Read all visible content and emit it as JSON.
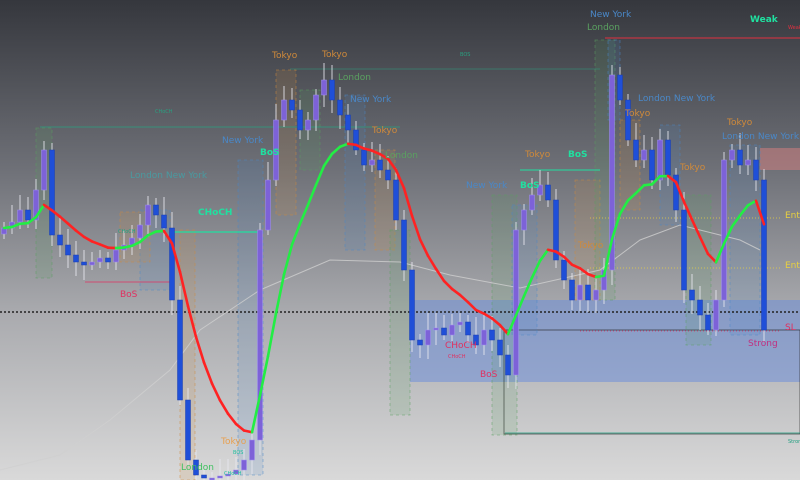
{
  "chart_data": {
    "type": "candlestick",
    "title": "",
    "xlabel": "",
    "ylabel": "",
    "grid": false,
    "colors": {
      "up": "#7d62d8",
      "down": "#1f4fd8",
      "ma_up": "#22ee44",
      "ma_down": "#ff2222",
      "slow_ma": "#d0d0d0",
      "demand_zone": "#6f8fd8",
      "supply_zone": "#d88080"
    },
    "closes": [
      252,
      258,
      270,
      260,
      290,
      330,
      245,
      235,
      225,
      218,
      215,
      218,
      222,
      218,
      230,
      235,
      242,
      255,
      275,
      265,
      252,
      180,
      80,
      20,
      5,
      2,
      2,
      4,
      6,
      10,
      20,
      40,
      250,
      300,
      360,
      380,
      370,
      350,
      360,
      385,
      400,
      380,
      365,
      350,
      330,
      315,
      320,
      310,
      300,
      260,
      210,
      140,
      135,
      150,
      152,
      145,
      155,
      158,
      145,
      135,
      150,
      140,
      125,
      105,
      250,
      270,
      285,
      295,
      280,
      220,
      200,
      180,
      195,
      180,
      190,
      210,
      405,
      380,
      340,
      320,
      330,
      300,
      340,
      305,
      270,
      190,
      180,
      165,
      150,
      180,
      320,
      330,
      315,
      320,
      300,
      150
    ],
    "annotations": [
      {
        "text": "Tokyo",
        "color": "#d08a3a"
      },
      {
        "text": "Tokyo",
        "color": "#d08a3a"
      },
      {
        "text": "London",
        "color": "#5aa060"
      },
      {
        "text": "New York",
        "color": "#4a88c8"
      },
      {
        "text": "Tokyo",
        "color": "#d08a3a"
      },
      {
        "text": "London",
        "color": "#5aa060"
      },
      {
        "text": "BOS",
        "color": "#2aa080"
      },
      {
        "text": "CHoCH",
        "color": "#2aa080"
      },
      {
        "text": "London New York",
        "color": "#4a9aa0"
      },
      {
        "text": "CHoCH",
        "color": "#20e0a0"
      },
      {
        "text": "BoS",
        "color": "#e03060"
      },
      {
        "text": "BoS",
        "color": "#20e0a0"
      },
      {
        "text": "New York",
        "color": "#4a88c8"
      },
      {
        "text": "New York",
        "color": "#4a88c8"
      },
      {
        "text": "London",
        "color": "#5aa060"
      },
      {
        "text": "Weak",
        "color": "#20e0a0"
      },
      {
        "text": "Tokyo",
        "color": "#d08a3a"
      },
      {
        "text": "London New York",
        "color": "#4a88c8"
      },
      {
        "text": "Tokyo",
        "color": "#d08a3a"
      },
      {
        "text": "BoS",
        "color": "#20e0a0"
      },
      {
        "text": "BoS",
        "color": "#20e0a0"
      },
      {
        "text": "New York",
        "color": "#4a88c8"
      },
      {
        "text": "Tokyo",
        "color": "#d08a3a"
      },
      {
        "text": "Tokyo",
        "color": "#d08a3a"
      },
      {
        "text": "Tokyo",
        "color": "#d08a3a"
      },
      {
        "text": "London New York",
        "color": "#4a88c8"
      },
      {
        "text": "Entry",
        "color": "#e8d040"
      },
      {
        "text": "Entry",
        "color": "#e8d040"
      },
      {
        "text": "SL",
        "color": "#e03060"
      },
      {
        "text": "Strong",
        "color": "#c03080"
      },
      {
        "text": "CHoCH",
        "color": "#e03060"
      },
      {
        "text": "BoS",
        "color": "#e03060"
      },
      {
        "text": "CHoCH",
        "color": "#e03060"
      },
      {
        "text": "Tokyo",
        "color": "#e8a050"
      },
      {
        "text": "London",
        "color": "#40c060"
      },
      {
        "text": "CHoCH",
        "color": "#20c0a0"
      },
      {
        "text": "BOS",
        "color": "#20c0a0"
      },
      {
        "text": "CHoCH",
        "color": "#20a080"
      },
      {
        "text": "Weak",
        "color": "#e03040"
      },
      {
        "text": "Strong",
        "color": "#20a080"
      }
    ]
  }
}
